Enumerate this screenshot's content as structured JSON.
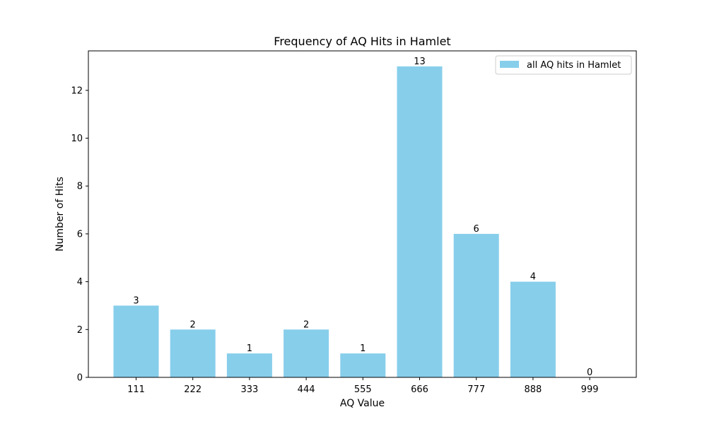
{
  "chart_data": {
    "type": "bar",
    "title": "Frequency of AQ Hits in Hamlet",
    "xlabel": "AQ Value",
    "ylabel": "Number of Hits",
    "categories": [
      "111",
      "222",
      "333",
      "444",
      "555",
      "666",
      "777",
      "888",
      "999"
    ],
    "series": [
      {
        "name": "all AQ hits in Hamlet",
        "values": [
          3,
          2,
          1,
          2,
          1,
          13,
          6,
          4,
          0
        ],
        "color": "#87CEEB"
      }
    ],
    "ylim": [
      0,
      13.65
    ],
    "yticks": [
      "0",
      "2",
      "4",
      "6",
      "8",
      "10",
      "12"
    ],
    "grid": false,
    "legend_position": "top-right",
    "data_labels": true
  }
}
